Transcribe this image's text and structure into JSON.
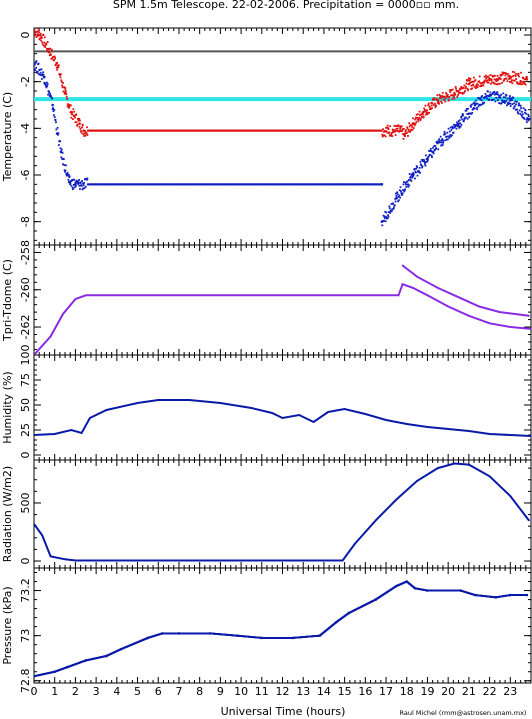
{
  "title": "SPM 1.5m Telescope. 22-02-2006. Precipitation = 0000▫▫ mm.",
  "credit": "Raul Michel (rmm@astrosen.unam.mx)",
  "x_axis": {
    "label": "Universal Time (hours)",
    "range": [
      0,
      24
    ],
    "ticks": [
      "0",
      "1",
      "2",
      "3",
      "4",
      "5",
      "6",
      "7",
      "8",
      "9",
      "10",
      "11",
      "12",
      "13",
      "14",
      "15",
      "16",
      "17",
      "18",
      "19",
      "20",
      "21",
      "22",
      "23"
    ]
  },
  "colors": {
    "red": "#e01010",
    "blue": "#1020c0",
    "navy": "#0a1aa8",
    "cyan": "#2ee6e6",
    "gray": "#555555",
    "purple": "#8a2be2",
    "axis": "#000000"
  },
  "chart_data": [
    {
      "type": "scatter",
      "title": "",
      "ylabel": "Temperature (C)",
      "ylim": [
        -9,
        0.3
      ],
      "yticks": [
        "0",
        "-2",
        "-4",
        "-6",
        "-8"
      ],
      "reference_lines": [
        {
          "y": -0.7,
          "color": "gray"
        },
        {
          "y": -2.75,
          "color": "cyan"
        }
      ],
      "series": [
        {
          "color": "red",
          "points": [
            [
              0,
              0.2
            ],
            [
              0.3,
              0
            ],
            [
              0.7,
              -0.6
            ],
            [
              1.1,
              -1.2
            ],
            [
              1.5,
              -2.5
            ],
            [
              1.8,
              -3.3
            ],
            [
              2.2,
              -3.8
            ],
            [
              2.4,
              -4.1
            ],
            [
              17.7,
              -4.1
            ],
            [
              17.9,
              -4.3
            ],
            [
              18.3,
              -3.8
            ],
            [
              18.8,
              -3.3
            ],
            [
              19.5,
              -2.8
            ],
            [
              20.3,
              -2.5
            ],
            [
              21,
              -2.1
            ],
            [
              22,
              -1.9
            ],
            [
              23,
              -1.8
            ],
            [
              23.8,
              -1.9
            ]
          ]
        },
        {
          "color": "blue",
          "points": [
            [
              0,
              -1.2
            ],
            [
              0.5,
              -1.8
            ],
            [
              0.9,
              -3.0
            ],
            [
              1.3,
              -5.0
            ],
            [
              1.7,
              -6.3
            ],
            [
              2.0,
              -6.4
            ],
            [
              16.8,
              -6.4
            ],
            [
              16.8,
              -8.0
            ],
            [
              17.5,
              -7.0
            ],
            [
              18.3,
              -6.0
            ],
            [
              19,
              -5.3
            ],
            [
              19.7,
              -4.5
            ],
            [
              20.5,
              -3.8
            ],
            [
              21.3,
              -3.0
            ],
            [
              22,
              -2.6
            ],
            [
              23,
              -2.8
            ],
            [
              23.9,
              -3.6
            ]
          ]
        }
      ]
    },
    {
      "type": "line",
      "title": "",
      "ylabel": "Tpri-Tdome (C)",
      "ylim": [
        -263.5,
        -257.6
      ],
      "yticks": [
        "-258",
        "-260",
        "-262"
      ],
      "series": [
        {
          "color": "purple",
          "points": [
            [
              0,
              -263.5
            ],
            [
              0.8,
              -262.5
            ],
            [
              1.4,
              -261.3
            ],
            [
              2.0,
              -260.5
            ],
            [
              2.5,
              -260.3
            ],
            [
              17.6,
              -260.3
            ],
            [
              17.8,
              -259.7
            ],
            [
              18.3,
              -259.9
            ],
            [
              19,
              -260.3
            ],
            [
              20,
              -260.9
            ],
            [
              21,
              -261.4
            ],
            [
              22,
              -261.8
            ],
            [
              23,
              -262.0
            ],
            [
              24,
              -262.1
            ]
          ]
        },
        {
          "color": "purple",
          "points": [
            [
              17.8,
              -258.7
            ],
            [
              18.5,
              -259.3
            ],
            [
              19.5,
              -259.9
            ],
            [
              20.5,
              -260.4
            ],
            [
              21.5,
              -260.9
            ],
            [
              22.5,
              -261.2
            ],
            [
              23.9,
              -261.4
            ]
          ]
        }
      ]
    },
    {
      "type": "line",
      "title": "",
      "ylabel": "Humidity (%)",
      "ylim": [
        -5,
        100
      ],
      "yticks": [
        "0",
        "25",
        "50",
        "75",
        "100"
      ],
      "series": [
        {
          "color": "navy",
          "points": [
            [
              0,
              20
            ],
            [
              1,
              21
            ],
            [
              1.8,
              25
            ],
            [
              2.3,
              22
            ],
            [
              2.7,
              37
            ],
            [
              3.5,
              45
            ],
            [
              5,
              52
            ],
            [
              6,
              55
            ],
            [
              7.5,
              55
            ],
            [
              9,
              52
            ],
            [
              10.5,
              47
            ],
            [
              11.5,
              42
            ],
            [
              12,
              37
            ],
            [
              12.8,
              40
            ],
            [
              13.5,
              33
            ],
            [
              14.2,
              43
            ],
            [
              15,
              46
            ],
            [
              16,
              41
            ],
            [
              17,
              35
            ],
            [
              18,
              31
            ],
            [
              19,
              28
            ],
            [
              21,
              24
            ],
            [
              22,
              21
            ],
            [
              24,
              19
            ]
          ]
        }
      ]
    },
    {
      "type": "line",
      "title": "",
      "ylabel": "Radiation (W/m2)",
      "ylim": [
        -60,
        870
      ],
      "yticks": [
        "0",
        "500"
      ],
      "series": [
        {
          "color": "navy",
          "points": [
            [
              0,
              320
            ],
            [
              0.4,
              220
            ],
            [
              0.8,
              40
            ],
            [
              1.5,
              15
            ],
            [
              2.0,
              5
            ],
            [
              14.9,
              5
            ],
            [
              15.5,
              150
            ],
            [
              16.5,
              350
            ],
            [
              17.5,
              530
            ],
            [
              18.5,
              690
            ],
            [
              19.5,
              800
            ],
            [
              20.3,
              840
            ],
            [
              21,
              830
            ],
            [
              22,
              730
            ],
            [
              23,
              560
            ],
            [
              23.9,
              350
            ]
          ]
        }
      ]
    },
    {
      "type": "scatter",
      "title": "",
      "ylabel": "Pressure (kPa)",
      "ylim": [
        72.79,
        73.3
      ],
      "yticks": [
        "72.8",
        "73",
        "73.2"
      ],
      "series": [
        {
          "color": "navy",
          "points": [
            [
              0,
              72.82
            ],
            [
              1.0,
              72.84
            ],
            [
              1.6,
              72.86
            ],
            [
              2.5,
              72.89
            ],
            [
              3.5,
              72.91
            ],
            [
              4.2,
              72.94
            ],
            [
              5.5,
              72.99
            ],
            [
              6.2,
              73.01
            ],
            [
              7,
              73.01
            ],
            [
              8.5,
              73.01
            ],
            [
              9.8,
              73.0
            ],
            [
              11,
              72.99
            ],
            [
              12.5,
              72.99
            ],
            [
              13.8,
              73.0
            ],
            [
              14.6,
              73.06
            ],
            [
              15.2,
              73.1
            ],
            [
              16.5,
              73.16
            ],
            [
              17.5,
              73.22
            ],
            [
              18.0,
              73.24
            ],
            [
              18.4,
              73.21
            ],
            [
              19,
              73.2
            ],
            [
              20.6,
              73.2
            ],
            [
              21.3,
              73.18
            ],
            [
              22.3,
              73.17
            ],
            [
              23,
              73.18
            ],
            [
              23.8,
              73.18
            ]
          ]
        }
      ]
    }
  ]
}
